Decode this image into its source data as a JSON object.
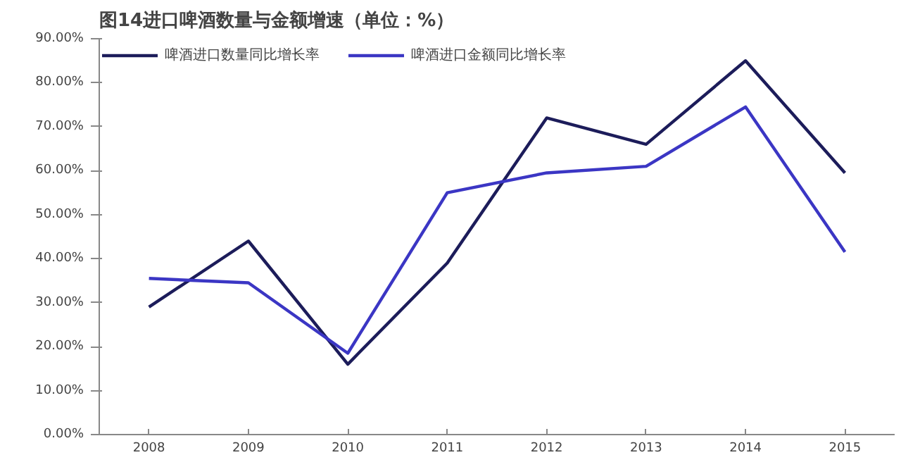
{
  "chart_data": {
    "type": "line",
    "title": "图14进口啤酒数量与金额增速（单位：%）",
    "categories": [
      "2008",
      "2009",
      "2010",
      "2011",
      "2012",
      "2013",
      "2014",
      "2015"
    ],
    "series": [
      {
        "name": "啤酒进口数量同比增长率",
        "color": "#1c1c5a",
        "values": [
          29,
          44,
          16,
          39,
          72,
          66,
          85,
          59.5
        ]
      },
      {
        "name": "啤酒进口金额同比增长率",
        "color": "#3b36c4",
        "values": [
          35.5,
          34.5,
          18.5,
          55,
          59.5,
          61,
          74.5,
          41.5
        ]
      }
    ],
    "ylim": [
      0,
      90
    ],
    "yticks": [
      {
        "value": 0,
        "label": "0.00%"
      },
      {
        "value": 10,
        "label": "10.00%"
      },
      {
        "value": 20,
        "label": "20.00%"
      },
      {
        "value": 30,
        "label": "30.00%"
      },
      {
        "value": 40,
        "label": "40.00%"
      },
      {
        "value": 50,
        "label": "50.00%"
      },
      {
        "value": 60,
        "label": "60.00%"
      },
      {
        "value": 70,
        "label": "70.00%"
      },
      {
        "value": 80,
        "label": "80.00%"
      },
      {
        "value": 90,
        "label": "90.00%"
      }
    ],
    "grid": false,
    "legend": "top",
    "marker": "none",
    "line_style": "solid"
  }
}
